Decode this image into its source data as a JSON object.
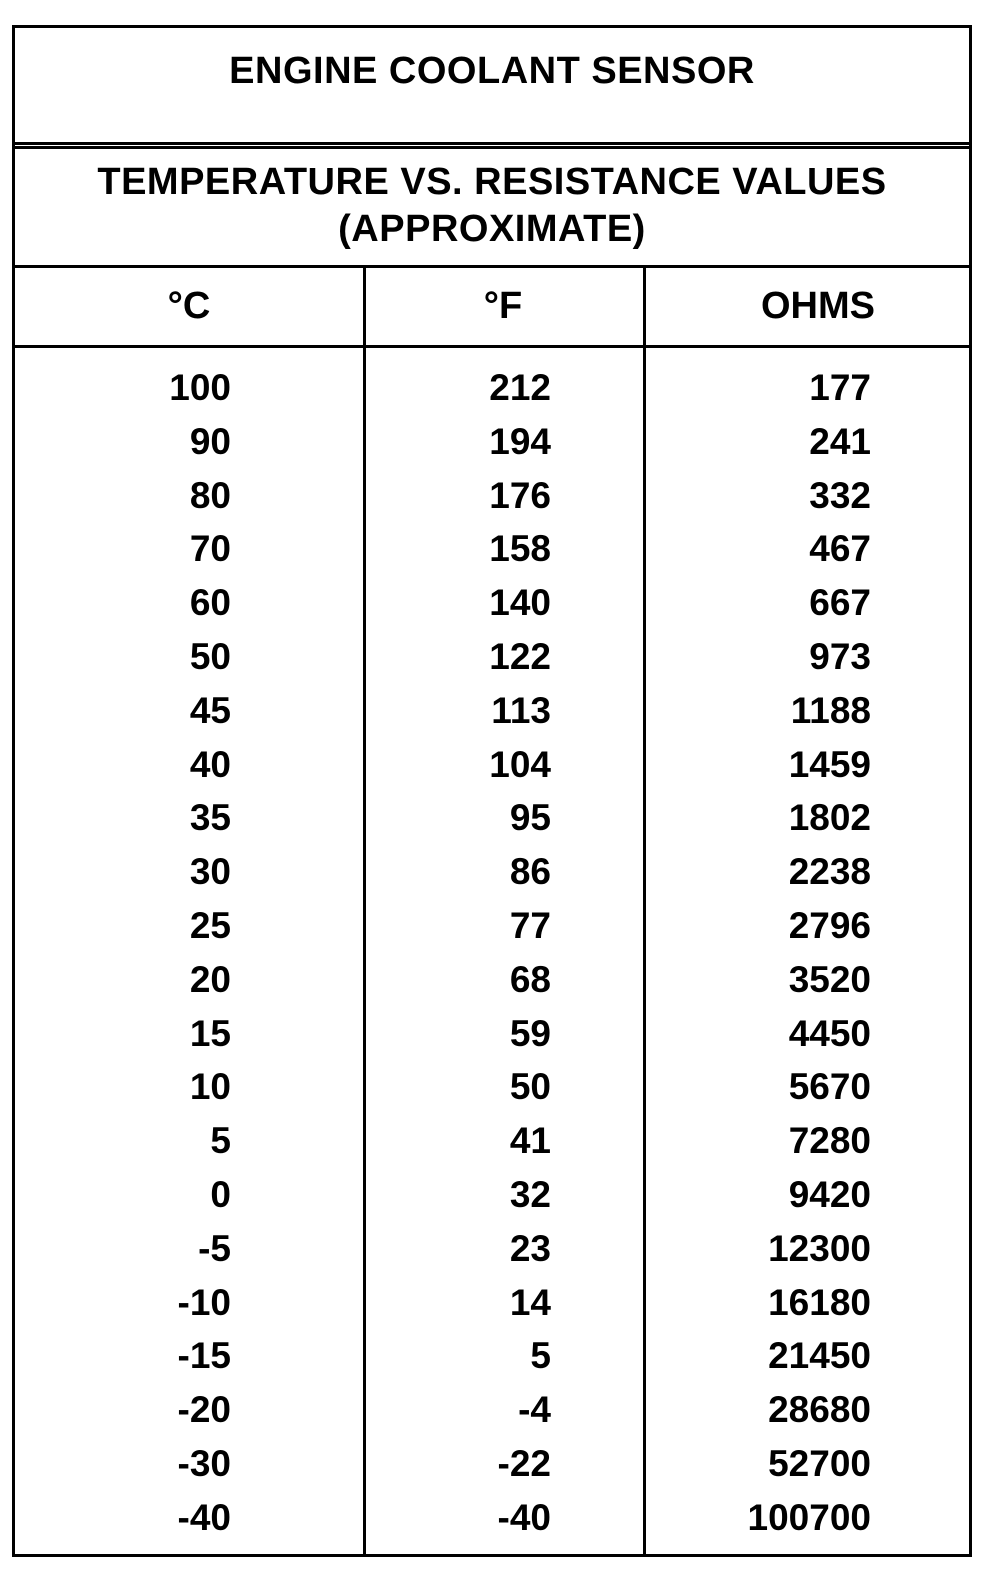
{
  "title": "ENGINE COOLANT SENSOR",
  "subtitle_line1": "TEMPERATURE VS. RESISTANCE VALUES",
  "subtitle_line2": "(APPROXIMATE)",
  "columns": [
    "°C",
    "°F",
    "OHMS"
  ],
  "rows": [
    [
      "100",
      "212",
      "177"
    ],
    [
      "90",
      "194",
      "241"
    ],
    [
      "80",
      "176",
      "332"
    ],
    [
      "70",
      "158",
      "467"
    ],
    [
      "60",
      "140",
      "667"
    ],
    [
      "50",
      "122",
      "973"
    ],
    [
      "45",
      "113",
      "1188"
    ],
    [
      "40",
      "104",
      "1459"
    ],
    [
      "35",
      "95",
      "1802"
    ],
    [
      "30",
      "86",
      "2238"
    ],
    [
      "25",
      "77",
      "2796"
    ],
    [
      "20",
      "68",
      "3520"
    ],
    [
      "15",
      "59",
      "4450"
    ],
    [
      "10",
      "50",
      "5670"
    ],
    [
      "5",
      "41",
      "7280"
    ],
    [
      "0",
      "32",
      "9420"
    ],
    [
      "-5",
      "23",
      "12300"
    ],
    [
      "-10",
      "14",
      "16180"
    ],
    [
      "-15",
      "5",
      "21450"
    ],
    [
      "-20",
      "-4",
      "28680"
    ],
    [
      "-30",
      "-22",
      "52700"
    ],
    [
      "-40",
      "-40",
      "100700"
    ]
  ]
}
